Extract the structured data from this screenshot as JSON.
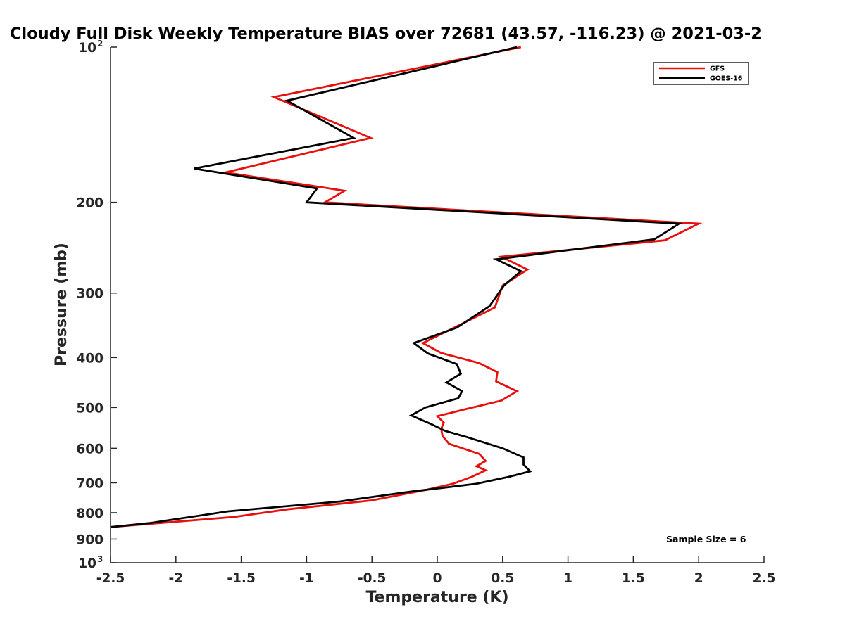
{
  "chart_data": {
    "type": "line",
    "title": "Cloudy Full Disk Weekly Temperature BIAS over 72681 (43.57, -116.23) @ 2021-03-2",
    "xlabel": "Temperature (K)",
    "ylabel": "Pressure (mb)",
    "xlim": [
      -2.5,
      2.5
    ],
    "ylim": [
      100,
      1000
    ],
    "y_scale": "log",
    "y_reversed": true,
    "x_ticks": [
      "-2.5",
      "-2",
      "-1.5",
      "-1",
      "-0.5",
      "0",
      "0.5",
      "1",
      "1.5",
      "2",
      "2.5"
    ],
    "x_tick_values": [
      -2.5,
      -2,
      -1.5,
      -1,
      -0.5,
      0,
      0.5,
      1,
      1.5,
      2,
      2.5
    ],
    "y_ticks": [
      {
        "value": 100,
        "label": "10",
        "exp": "2"
      },
      {
        "value": 200,
        "label": "200",
        "exp": ""
      },
      {
        "value": 300,
        "label": "300",
        "exp": ""
      },
      {
        "value": 400,
        "label": "400",
        "exp": ""
      },
      {
        "value": 500,
        "label": "500",
        "exp": ""
      },
      {
        "value": 600,
        "label": "600",
        "exp": ""
      },
      {
        "value": 700,
        "label": "700",
        "exp": ""
      },
      {
        "value": 800,
        "label": "800",
        "exp": ""
      },
      {
        "value": 900,
        "label": "900",
        "exp": ""
      },
      {
        "value": 1000,
        "label": "10",
        "exp": "3"
      }
    ],
    "grid": false,
    "legend_position": "top-right",
    "series": [
      {
        "name": "GFS",
        "color": "#e8100d",
        "points": [
          [
            0.64,
            100
          ],
          [
            -1.25,
            125
          ],
          [
            -0.51,
            150
          ],
          [
            -1.62,
            175
          ],
          [
            -0.71,
            190
          ],
          [
            -0.86,
            200
          ],
          [
            2.0,
            220
          ],
          [
            1.74,
            237
          ],
          [
            0.49,
            255
          ],
          [
            0.69,
            270
          ],
          [
            0.5,
            290
          ],
          [
            0.44,
            320
          ],
          [
            -0.11,
            375
          ],
          [
            0.03,
            392
          ],
          [
            0.32,
            410
          ],
          [
            0.46,
            427
          ],
          [
            0.45,
            445
          ],
          [
            0.61,
            465
          ],
          [
            0.49,
            485
          ],
          [
            0.2,
            505
          ],
          [
            0.0,
            520
          ],
          [
            0.05,
            535
          ],
          [
            0.03,
            550
          ],
          [
            0.04,
            568
          ],
          [
            0.09,
            588
          ],
          [
            0.32,
            615
          ],
          [
            0.37,
            635
          ],
          [
            0.3,
            650
          ],
          [
            0.37,
            662
          ],
          [
            0.26,
            682
          ],
          [
            0.12,
            703
          ],
          [
            -0.08,
            722
          ],
          [
            -0.5,
            757
          ],
          [
            -1.15,
            788
          ],
          [
            -1.55,
            815
          ],
          [
            -2.5,
            853
          ]
        ]
      },
      {
        "name": "GOES-16",
        "color": "#000000",
        "points": [
          [
            0.61,
            100
          ],
          [
            -1.15,
            127
          ],
          [
            -0.64,
            150
          ],
          [
            -1.86,
            172
          ],
          [
            -0.92,
            188
          ],
          [
            -1.0,
            200
          ],
          [
            1.85,
            220
          ],
          [
            1.66,
            236
          ],
          [
            0.45,
            258
          ],
          [
            0.64,
            272
          ],
          [
            0.51,
            290
          ],
          [
            0.4,
            318
          ],
          [
            0.15,
            350
          ],
          [
            -0.18,
            375
          ],
          [
            -0.07,
            393
          ],
          [
            0.15,
            412
          ],
          [
            0.18,
            430
          ],
          [
            0.07,
            447
          ],
          [
            0.19,
            465
          ],
          [
            0.16,
            480
          ],
          [
            -0.09,
            500
          ],
          [
            -0.2,
            518
          ],
          [
            -0.05,
            538
          ],
          [
            0.06,
            555
          ],
          [
            0.22,
            570
          ],
          [
            0.5,
            600
          ],
          [
            0.66,
            625
          ],
          [
            0.66,
            645
          ],
          [
            0.71,
            665
          ],
          [
            0.54,
            682
          ],
          [
            0.3,
            703
          ],
          [
            -0.2,
            728
          ],
          [
            -0.75,
            761
          ],
          [
            -1.6,
            795
          ],
          [
            -2.2,
            838
          ],
          [
            -2.5,
            853
          ]
        ]
      }
    ],
    "annotations": [
      {
        "text": "Sample Size = 6"
      }
    ]
  }
}
